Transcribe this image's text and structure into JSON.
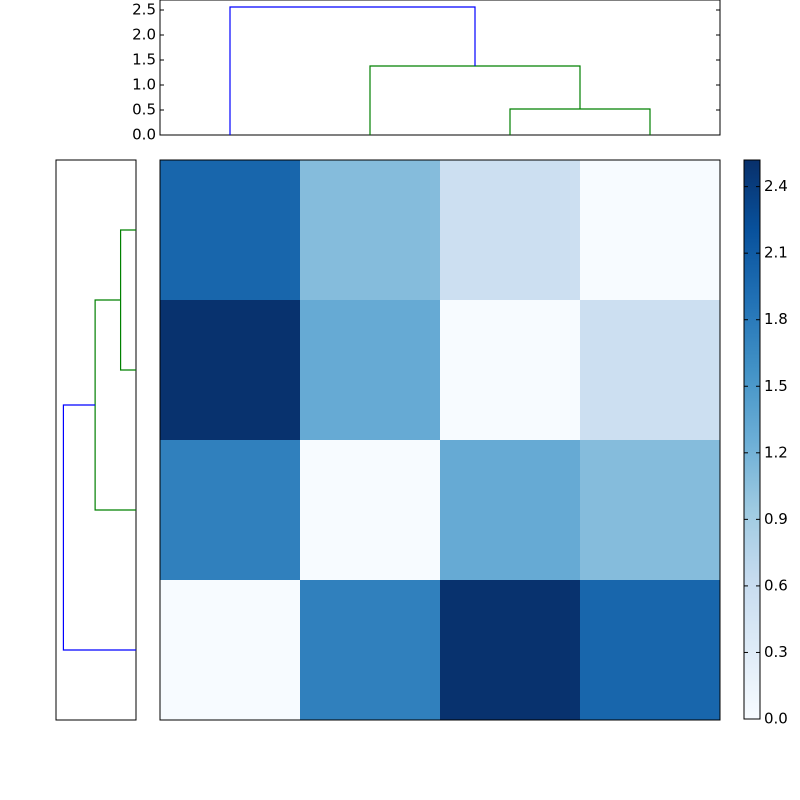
{
  "chart_data": {
    "type": "clustermap",
    "matrix": [
      [
        2.0,
        1.1,
        0.55,
        0
      ],
      [
        2.5,
        1.3,
        0,
        0.55
      ],
      [
        1.75,
        0,
        1.3,
        1.1
      ],
      [
        0,
        1.75,
        2.5,
        2.0
      ]
    ],
    "colormap": [
      "#f7fbff",
      "#deebf7",
      "#c6dbef",
      "#9ecae1",
      "#6baed6",
      "#4292c6",
      "#2171b5",
      "#08519c",
      "#08306b"
    ],
    "colorbar": {
      "ylim": [
        0,
        2.52
      ],
      "yticks": [
        {
          "value": 0,
          "label": "0.0"
        },
        0.3,
        0.6,
        0.9,
        1.2,
        1.5,
        1.8,
        2.1,
        2.4
      ]
    },
    "dendrogram_top": {
      "ylim": [
        0,
        2.7
      ],
      "yticks": [
        {
          "value": 0,
          "label": "0.0"
        },
        0.5,
        {
          "value": 1,
          "label": "1.0"
        },
        1.5,
        {
          "value": 2,
          "label": "2.0"
        },
        2.5
      ],
      "links": [
        {
          "x": [
            2,
            2,
            3,
            3
          ],
          "y": [
            0,
            0.52,
            0.52,
            0
          ],
          "color": "#008000"
        },
        {
          "x": [
            1,
            1,
            2.5,
            2.5
          ],
          "y": [
            0,
            1.38,
            1.38,
            0.52
          ],
          "color": "#008000"
        },
        {
          "x": [
            0,
            0,
            1.75,
            1.75
          ],
          "y": [
            0,
            2.56,
            2.56,
            1.38
          ],
          "color": "#0000ff"
        }
      ]
    },
    "dendrogram_left": {
      "xlim": [
        2.7,
        0
      ],
      "links": [
        {
          "x": [
            0,
            0,
            1,
            1
          ],
          "y": [
            0,
            0.52,
            0.52,
            0
          ],
          "color": "#008000"
        },
        {
          "x": [
            0.5,
            0.5,
            2,
            2
          ],
          "y": [
            0.52,
            1.38,
            1.38,
            0
          ],
          "color": "#008000"
        },
        {
          "x": [
            1.25,
            1.25,
            3,
            3
          ],
          "y": [
            1.38,
            2.45,
            2.45,
            0
          ],
          "color": "#0000ff"
        }
      ]
    }
  }
}
